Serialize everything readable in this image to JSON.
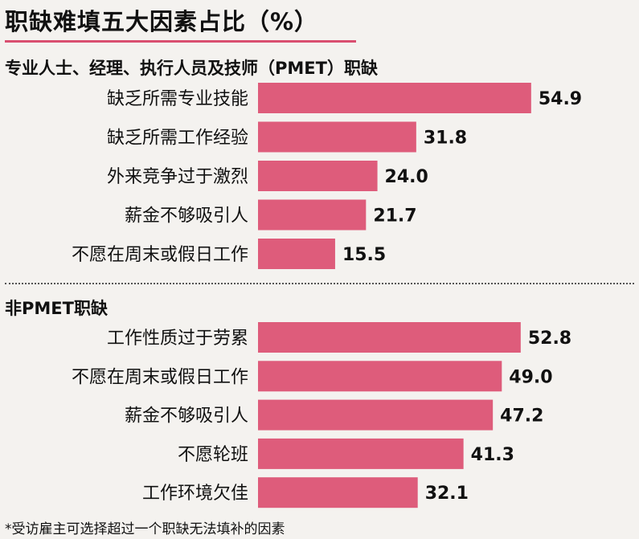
{
  "title": "职缺难填五大因素占比（%）",
  "footnote": "*受访雇主可选择超过一个职缺无法填补的因素",
  "chart_data": [
    {
      "type": "bar",
      "orientation": "horizontal",
      "title": "专业人士、经理、执行人员及技师（PMET）职缺",
      "categories": [
        "缺乏所需专业技能",
        "缺乏所需工作经验",
        "外来竞争过于激烈",
        "薪金不够吸引人",
        "不愿在周末或假日工作"
      ],
      "values": [
        54.9,
        31.8,
        24.0,
        21.7,
        15.5
      ],
      "value_labels": [
        "54.9",
        "31.8",
        "24.0",
        "21.7",
        "15.5"
      ]
    },
    {
      "type": "bar",
      "orientation": "horizontal",
      "title": "非PMET职缺",
      "categories": [
        "工作性质过于劳累",
        "不愿在周末或假日工作",
        "薪金不够吸引人",
        "不愿轮班",
        "工作环境欠佳"
      ],
      "values": [
        52.8,
        49.0,
        47.2,
        41.3,
        32.1
      ],
      "value_labels": [
        "52.8",
        "49.0",
        "47.2",
        "41.3",
        "32.1"
      ]
    }
  ],
  "colors": {
    "bar": "#de5c7b",
    "title_rule": "#d94f70",
    "background": "#f4f2ef"
  }
}
